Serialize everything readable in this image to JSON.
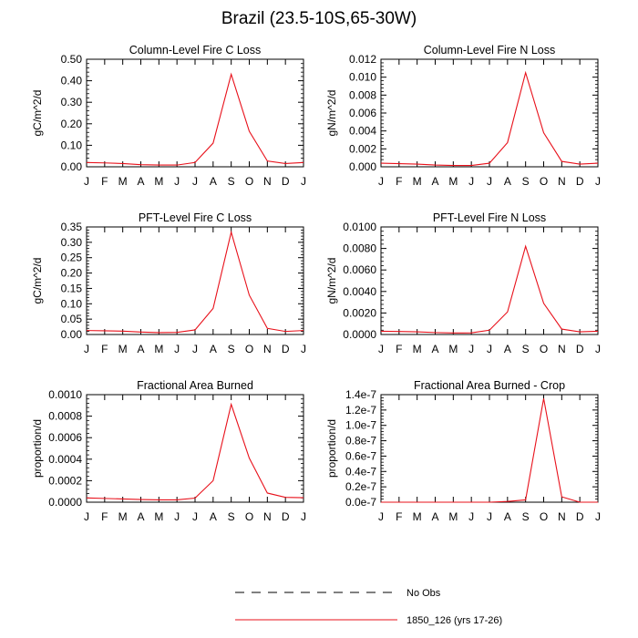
{
  "title": "Brazil (23.5-10S,65-30W)",
  "month_labels": [
    "J",
    "F",
    "M",
    "A",
    "M",
    "J",
    "J",
    "A",
    "S",
    "O",
    "N",
    "D",
    "J"
  ],
  "legend": {
    "obs_label": "No Obs",
    "model_label": "1850_126 (yrs 17-26)",
    "model_color": "#e8101a",
    "obs_color": "#000000"
  },
  "chart_data": [
    {
      "type": "line",
      "title": "Column-Level Fire C Loss",
      "ylabel": "gC/m^2/d",
      "ylim": [
        0,
        0.5
      ],
      "yticks": [
        0,
        0.1,
        0.2,
        0.3,
        0.4,
        0.5
      ],
      "ytick_labels": [
        "0.00",
        "0.10",
        "0.20",
        "0.30",
        "0.40",
        "0.50"
      ],
      "x": [
        "J",
        "F",
        "M",
        "A",
        "M",
        "J",
        "J",
        "A",
        "S",
        "O",
        "N",
        "D",
        "J"
      ],
      "series": [
        {
          "values": [
            0.02,
            0.018,
            0.015,
            0.01,
            0.008,
            0.008,
            0.02,
            0.11,
            0.43,
            0.165,
            0.027,
            0.015,
            0.02
          ]
        }
      ]
    },
    {
      "type": "line",
      "title": "Column-Level Fire N Loss",
      "ylabel": "gN/m^2/d",
      "ylim": [
        0,
        0.012
      ],
      "yticks": [
        0,
        0.002,
        0.004,
        0.006,
        0.008,
        0.01,
        0.012
      ],
      "ytick_labels": [
        "0.000",
        "0.002",
        "0.004",
        "0.006",
        "0.008",
        "0.010",
        "0.012"
      ],
      "x": [
        "J",
        "F",
        "M",
        "A",
        "M",
        "J",
        "J",
        "A",
        "S",
        "O",
        "N",
        "D",
        "J"
      ],
      "series": [
        {
          "values": [
            0.0004,
            0.00035,
            0.0003,
            0.0002,
            0.00015,
            0.00015,
            0.0004,
            0.0027,
            0.0105,
            0.0038,
            0.0006,
            0.0003,
            0.0004
          ]
        }
      ]
    },
    {
      "type": "line",
      "title": "PFT-Level Fire C Loss",
      "ylabel": "gC/m^2/d",
      "ylim": [
        0,
        0.35
      ],
      "yticks": [
        0,
        0.05,
        0.1,
        0.15,
        0.2,
        0.25,
        0.3,
        0.35
      ],
      "ytick_labels": [
        "0.00",
        "0.05",
        "0.10",
        "0.15",
        "0.20",
        "0.25",
        "0.30",
        "0.35"
      ],
      "x": [
        "J",
        "F",
        "M",
        "A",
        "M",
        "J",
        "J",
        "A",
        "S",
        "O",
        "N",
        "D",
        "J"
      ],
      "series": [
        {
          "values": [
            0.013,
            0.012,
            0.011,
            0.008,
            0.006,
            0.007,
            0.015,
            0.085,
            0.333,
            0.128,
            0.02,
            0.01,
            0.013
          ]
        }
      ]
    },
    {
      "type": "line",
      "title": "PFT-Level Fire N Loss",
      "ylabel": "gN/m^2/d",
      "ylim": [
        0,
        0.01
      ],
      "yticks": [
        0,
        0.002,
        0.004,
        0.006,
        0.008,
        0.01
      ],
      "ytick_labels": [
        "0.0000",
        "0.0020",
        "0.0040",
        "0.0060",
        "0.0080",
        "0.0100"
      ],
      "x": [
        "J",
        "F",
        "M",
        "A",
        "M",
        "J",
        "J",
        "A",
        "S",
        "O",
        "N",
        "D",
        "J"
      ],
      "series": [
        {
          "values": [
            0.0003,
            0.00028,
            0.00025,
            0.00018,
            0.00014,
            0.00015,
            0.0004,
            0.0021,
            0.0082,
            0.0029,
            0.0005,
            0.00025,
            0.0003
          ]
        }
      ]
    },
    {
      "type": "line",
      "title": "Fractional Area Burned",
      "ylabel": "proportion/d",
      "ylim": [
        0,
        0.001
      ],
      "yticks": [
        0,
        0.0002,
        0.0004,
        0.0006,
        0.0008,
        0.001
      ],
      "ytick_labels": [
        "0.0000",
        "0.0002",
        "0.0004",
        "0.0006",
        "0.0008",
        "0.0010"
      ],
      "x": [
        "J",
        "F",
        "M",
        "A",
        "M",
        "J",
        "J",
        "A",
        "S",
        "O",
        "N",
        "D",
        "J"
      ],
      "series": [
        {
          "values": [
            4e-05,
            3.5e-05,
            3e-05,
            2.5e-05,
            2.2e-05,
            2.2e-05,
            3.8e-05,
            0.0002,
            0.00091,
            0.00041,
            8.5e-05,
            4.5e-05,
            4.2e-05
          ]
        }
      ]
    },
    {
      "type": "line",
      "title": "Fractional Area Burned - Crop",
      "ylabel": "proportion/d",
      "ylim": [
        0,
        1.4e-07
      ],
      "yticks": [
        0,
        2e-08,
        4e-08,
        6e-08,
        8e-08,
        1e-07,
        1.2e-07,
        1.4e-07
      ],
      "ytick_labels": [
        "0.0e-7",
        "0.2e-7",
        "0.4e-7",
        "0.6e-7",
        "0.8e-7",
        "1.0e-7",
        "1.2e-7",
        "1.4e-7"
      ],
      "x": [
        "J",
        "F",
        "M",
        "A",
        "M",
        "J",
        "J",
        "A",
        "S",
        "O",
        "N",
        "D",
        "J"
      ],
      "series": [
        {
          "values": [
            0,
            0,
            0,
            0,
            0,
            0,
            0,
            1e-09,
            3e-09,
            1.35e-07,
            7e-09,
            0,
            0
          ]
        }
      ]
    }
  ]
}
